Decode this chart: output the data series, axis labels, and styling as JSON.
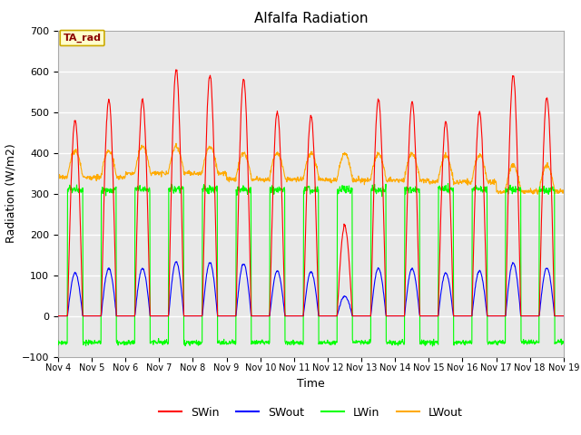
{
  "title": "Alfalfa Radiation",
  "ylabel": "Radiation (W/m2)",
  "xlabel": "Time",
  "ylim": [
    -100,
    700
  ],
  "yticks": [
    -100,
    0,
    100,
    200,
    300,
    400,
    500,
    600,
    700
  ],
  "xtick_labels": [
    "Nov 4",
    "Nov 5",
    "Nov 6",
    "Nov 7",
    "Nov 8",
    "Nov 9",
    "Nov 9",
    "Nov 10",
    "Nov 11",
    "Nov 12",
    "Nov 13",
    "Nov 14",
    "Nov 15",
    "Nov 16",
    "Nov 17",
    "Nov 18",
    "Nov 19"
  ],
  "legend_label": "TA_rad",
  "series_colors": {
    "SWin": "#ff0000",
    "SWout": "#0000ff",
    "LWin": "#00ff00",
    "LWout": "#ffaa00"
  },
  "background_color": "#e8e8e8",
  "title_fontsize": 11,
  "axis_fontsize": 9,
  "legend_fontsize": 9
}
